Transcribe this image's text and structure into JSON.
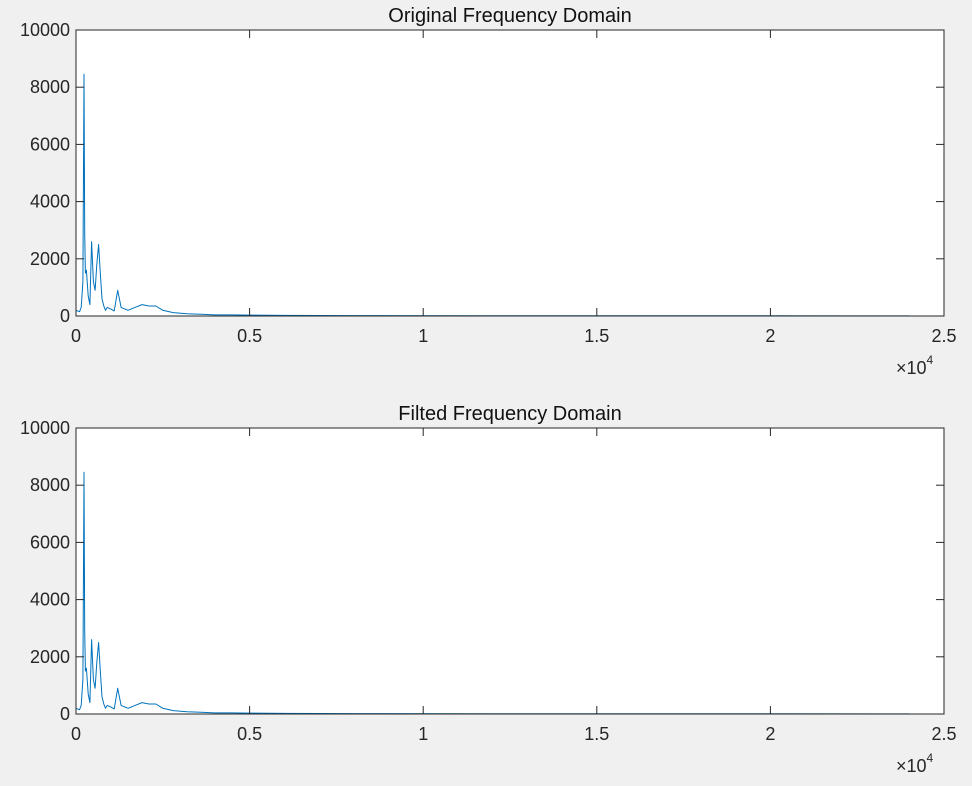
{
  "figure": {
    "background": "#f0f0f0",
    "axes_background": "#ffffff",
    "line_color": "#0072bd"
  },
  "chart_data": [
    {
      "type": "line",
      "title": "Original Frequency Domain",
      "xlim": [
        0,
        25000
      ],
      "ylim": [
        0,
        10000
      ],
      "xticks": [
        0,
        5000,
        10000,
        15000,
        20000,
        25000
      ],
      "xtick_labels": [
        "0",
        "0.5",
        "1",
        "1.5",
        "2",
        "2.5"
      ],
      "yticks": [
        0,
        2000,
        4000,
        6000,
        8000,
        10000
      ],
      "ytick_labels": [
        "0",
        "2000",
        "4000",
        "6000",
        "8000",
        "10000"
      ],
      "x_exponent": {
        "base": "×10",
        "power": "4"
      },
      "grid": false,
      "series": [
        {
          "color": "#0072bd",
          "x": [
            0,
            100,
            150,
            200,
            230,
            250,
            270,
            300,
            350,
            400,
            450,
            500,
            550,
            600,
            650,
            700,
            750,
            800,
            850,
            900,
            1000,
            1100,
            1200,
            1300,
            1400,
            1500,
            1700,
            1900,
            2100,
            2300,
            2500,
            2800,
            3200,
            3600,
            4000,
            4500,
            5000,
            6000,
            8000,
            12000,
            16000,
            20000,
            24000
          ],
          "y": [
            200,
            150,
            300,
            1200,
            8450,
            2900,
            1500,
            1600,
            700,
            400,
            2600,
            1200,
            900,
            1800,
            2500,
            1500,
            600,
            350,
            200,
            300,
            250,
            180,
            900,
            300,
            250,
            200,
            300,
            400,
            350,
            350,
            200,
            120,
            80,
            60,
            40,
            40,
            30,
            20,
            15,
            10,
            8,
            6,
            5
          ]
        }
      ]
    },
    {
      "type": "line",
      "title": "Filted Frequency Domain",
      "xlim": [
        0,
        25000
      ],
      "ylim": [
        0,
        10000
      ],
      "xticks": [
        0,
        5000,
        10000,
        15000,
        20000,
        25000
      ],
      "xtick_labels": [
        "0",
        "0.5",
        "1",
        "1.5",
        "2",
        "2.5"
      ],
      "yticks": [
        0,
        2000,
        4000,
        6000,
        8000,
        10000
      ],
      "ytick_labels": [
        "0",
        "2000",
        "4000",
        "6000",
        "8000",
        "10000"
      ],
      "x_exponent": {
        "base": "×10",
        "power": "4"
      },
      "grid": false,
      "series": [
        {
          "color": "#0072bd",
          "x": [
            0,
            100,
            150,
            200,
            230,
            250,
            270,
            300,
            350,
            400,
            450,
            500,
            550,
            600,
            650,
            700,
            750,
            800,
            850,
            900,
            1000,
            1100,
            1200,
            1300,
            1400,
            1500,
            1700,
            1900,
            2100,
            2300,
            2500,
            2800,
            3200,
            3600,
            4000,
            4500,
            5000,
            6000,
            8000,
            12000,
            16000,
            20000,
            24000
          ],
          "y": [
            200,
            150,
            300,
            1200,
            8450,
            2900,
            1500,
            1600,
            700,
            400,
            2600,
            1200,
            900,
            1800,
            2500,
            1500,
            600,
            350,
            200,
            300,
            250,
            180,
            900,
            300,
            250,
            200,
            300,
            400,
            350,
            350,
            200,
            120,
            80,
            60,
            40,
            40,
            30,
            20,
            15,
            10,
            8,
            6,
            5
          ]
        }
      ]
    }
  ]
}
